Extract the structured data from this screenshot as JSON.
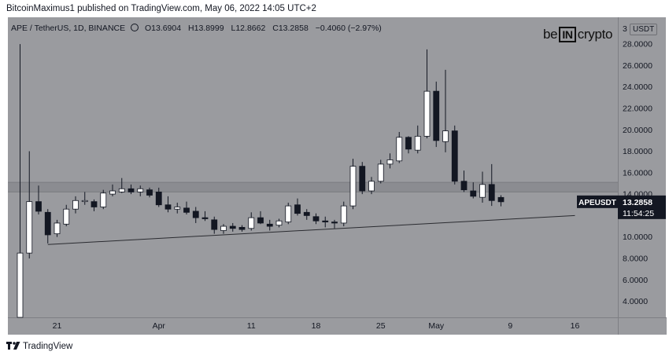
{
  "header": {
    "published_by": "BitcoinMaximus1 published on TradingView.com, May 06, 2022 14:05 UTC+2"
  },
  "legend": {
    "symbol": "APE / TetherUS, 1D, BINANCE",
    "ohlc": [
      {
        "label": "O",
        "value": "13.6904"
      },
      {
        "label": "H",
        "value": "13.8999"
      },
      {
        "label": "L",
        "value": "12.8662"
      },
      {
        "label": "C",
        "value": "13.2858"
      }
    ],
    "change": "−0.4060 (−2.97%)"
  },
  "brand": {
    "left": "be",
    "box": "IN",
    "right": "crypto"
  },
  "footer": {
    "platform": "TradingView"
  },
  "price_tag": {
    "symbol": "APEUSDT",
    "price": "13.2858",
    "countdown": "11:54:25",
    "color": "#131722"
  },
  "colors": {
    "background": "#9a9b9f",
    "up_candle": "#ffffff",
    "down_candle": "#131722",
    "zone": "#888a8e"
  },
  "chart_data": {
    "type": "candlestick",
    "symbol": "APEUSDT",
    "currency": "USDT",
    "ylim": [
      2.5,
      30.5
    ],
    "y_ticks": [
      "4.0000",
      "6.0000",
      "8.0000",
      "10.0000",
      "12.0000",
      "14.0000",
      "16.0000",
      "18.0000",
      "20.0000",
      "22.0000",
      "24.0000",
      "26.0000",
      "28.0000"
    ],
    "y_tick_values": [
      4,
      6,
      8,
      10,
      12,
      14,
      16,
      18,
      20,
      22,
      24,
      26,
      28
    ],
    "top_tick_label": "3",
    "x_ticks": [
      {
        "label": "21",
        "day": 4
      },
      {
        "label": "Apr",
        "day": 15
      },
      {
        "label": "11",
        "day": 25
      },
      {
        "label": "18",
        "day": 32
      },
      {
        "label": "25",
        "day": 39
      },
      {
        "label": "May",
        "day": 45
      },
      {
        "label": "9",
        "day": 53
      },
      {
        "label": "16",
        "day": 60
      }
    ],
    "candles": [
      {
        "o": 2.5,
        "h": 28.0,
        "l": 2.5,
        "c": 8.5
      },
      {
        "o": 8.5,
        "h": 18.0,
        "l": 8.0,
        "c": 13.3
      },
      {
        "o": 13.3,
        "h": 14.8,
        "l": 12.1,
        "c": 12.4
      },
      {
        "o": 12.3,
        "h": 12.6,
        "l": 9.4,
        "c": 10.2
      },
      {
        "o": 10.3,
        "h": 11.6,
        "l": 10.0,
        "c": 11.3
      },
      {
        "o": 11.2,
        "h": 13.0,
        "l": 11.0,
        "c": 12.6
      },
      {
        "o": 12.6,
        "h": 13.8,
        "l": 12.2,
        "c": 13.4
      },
      {
        "o": 13.3,
        "h": 14.2,
        "l": 13.0,
        "c": 13.4
      },
      {
        "o": 13.3,
        "h": 13.5,
        "l": 12.4,
        "c": 12.8
      },
      {
        "o": 12.8,
        "h": 14.4,
        "l": 12.6,
        "c": 14.1
      },
      {
        "o": 14.0,
        "h": 14.9,
        "l": 13.8,
        "c": 14.3
      },
      {
        "o": 14.2,
        "h": 15.5,
        "l": 14.1,
        "c": 14.5
      },
      {
        "o": 14.5,
        "h": 14.9,
        "l": 14.0,
        "c": 14.2
      },
      {
        "o": 14.2,
        "h": 14.8,
        "l": 13.8,
        "c": 14.5
      },
      {
        "o": 14.4,
        "h": 14.6,
        "l": 13.7,
        "c": 13.9
      },
      {
        "o": 14.2,
        "h": 14.6,
        "l": 12.8,
        "c": 13.0
      },
      {
        "o": 13.0,
        "h": 13.8,
        "l": 12.3,
        "c": 12.6
      },
      {
        "o": 12.6,
        "h": 13.2,
        "l": 12.2,
        "c": 12.8
      },
      {
        "o": 12.7,
        "h": 13.3,
        "l": 12.1,
        "c": 12.3
      },
      {
        "o": 12.4,
        "h": 12.8,
        "l": 11.3,
        "c": 11.8
      },
      {
        "o": 11.8,
        "h": 12.4,
        "l": 11.5,
        "c": 11.7
      },
      {
        "o": 11.6,
        "h": 11.9,
        "l": 10.3,
        "c": 10.7
      },
      {
        "o": 10.6,
        "h": 11.2,
        "l": 10.3,
        "c": 11.0
      },
      {
        "o": 11.0,
        "h": 11.3,
        "l": 10.5,
        "c": 10.8
      },
      {
        "o": 10.9,
        "h": 11.1,
        "l": 10.5,
        "c": 10.7
      },
      {
        "o": 10.8,
        "h": 12.3,
        "l": 10.6,
        "c": 11.8
      },
      {
        "o": 11.8,
        "h": 12.4,
        "l": 11.2,
        "c": 11.3
      },
      {
        "o": 11.2,
        "h": 11.6,
        "l": 10.6,
        "c": 11.0
      },
      {
        "o": 11.1,
        "h": 11.7,
        "l": 10.9,
        "c": 11.5
      },
      {
        "o": 11.4,
        "h": 13.2,
        "l": 11.2,
        "c": 12.9
      },
      {
        "o": 13.0,
        "h": 13.6,
        "l": 12.0,
        "c": 12.2
      },
      {
        "o": 12.3,
        "h": 12.6,
        "l": 11.6,
        "c": 12.0
      },
      {
        "o": 11.9,
        "h": 12.2,
        "l": 11.2,
        "c": 11.5
      },
      {
        "o": 11.5,
        "h": 11.9,
        "l": 10.9,
        "c": 11.4
      },
      {
        "o": 11.4,
        "h": 11.6,
        "l": 10.8,
        "c": 11.3
      },
      {
        "o": 11.3,
        "h": 13.3,
        "l": 11.0,
        "c": 12.9
      },
      {
        "o": 12.9,
        "h": 17.3,
        "l": 12.6,
        "c": 16.6
      },
      {
        "o": 16.6,
        "h": 17.0,
        "l": 14.0,
        "c": 14.3
      },
      {
        "o": 14.3,
        "h": 15.6,
        "l": 14.0,
        "c": 15.2
      },
      {
        "o": 15.2,
        "h": 17.2,
        "l": 15.0,
        "c": 16.8
      },
      {
        "o": 16.8,
        "h": 17.8,
        "l": 16.4,
        "c": 17.2
      },
      {
        "o": 17.1,
        "h": 19.8,
        "l": 16.9,
        "c": 19.3
      },
      {
        "o": 19.3,
        "h": 19.4,
        "l": 17.8,
        "c": 18.2
      },
      {
        "o": 18.1,
        "h": 20.4,
        "l": 17.8,
        "c": 19.4
      },
      {
        "o": 19.4,
        "h": 27.5,
        "l": 19.2,
        "c": 23.6
      },
      {
        "o": 23.6,
        "h": 24.5,
        "l": 18.4,
        "c": 19.0
      },
      {
        "o": 18.9,
        "h": 25.6,
        "l": 17.9,
        "c": 19.9
      },
      {
        "o": 19.9,
        "h": 20.4,
        "l": 14.9,
        "c": 15.2
      },
      {
        "o": 15.2,
        "h": 16.2,
        "l": 14.2,
        "c": 14.4
      },
      {
        "o": 14.3,
        "h": 15.1,
        "l": 13.6,
        "c": 13.8
      },
      {
        "o": 13.7,
        "h": 16.1,
        "l": 13.2,
        "c": 14.9
      },
      {
        "o": 14.9,
        "h": 16.8,
        "l": 12.9,
        "c": 13.4
      },
      {
        "o": 13.6904,
        "h": 13.8999,
        "l": 12.8662,
        "c": 13.2858
      }
    ],
    "support_zone": [
      14.2,
      15.1
    ],
    "trendline": {
      "from": {
        "day": 3,
        "price": 9.3
      },
      "to": {
        "day": 60,
        "price": 12.0
      }
    }
  }
}
